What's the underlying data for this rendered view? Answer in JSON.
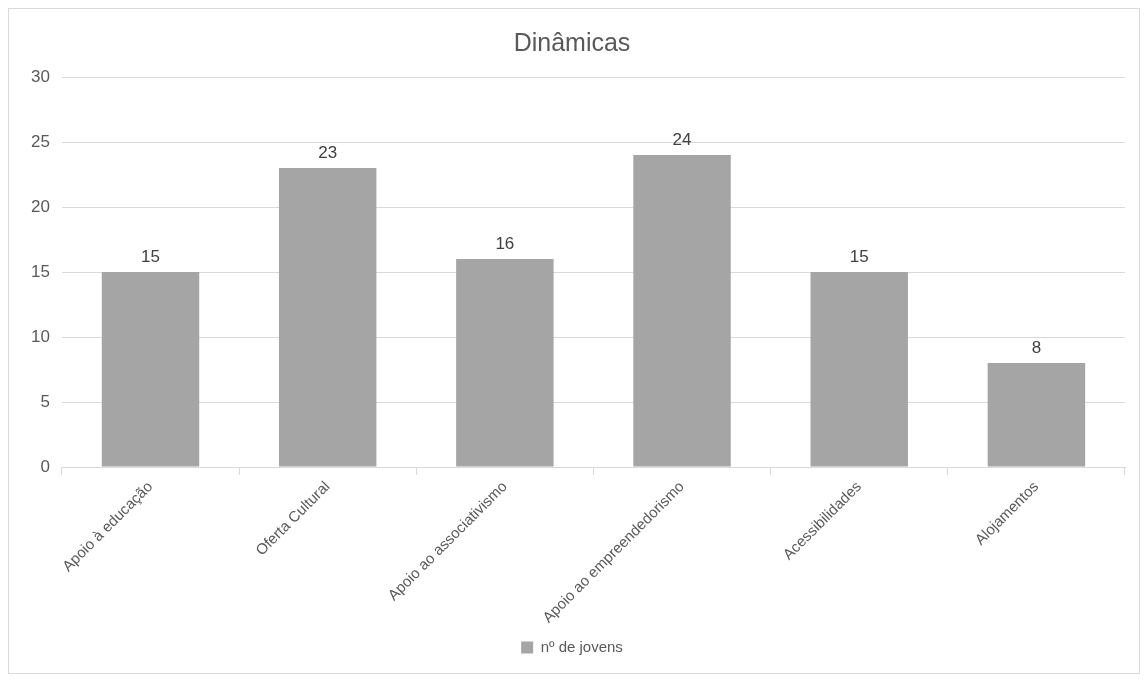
{
  "chart_data": {
    "type": "bar",
    "title": "Dinâmicas",
    "categories": [
      "Apoio à educação",
      "Oferta Cultural",
      "Apoio ao associativismo",
      "Apoio ao empreendedorismo",
      "Acessibilidades",
      "Alojamentos"
    ],
    "series": [
      {
        "name": "nº de jovens",
        "color": "#a5a5a5",
        "values": [
          15,
          23,
          16,
          24,
          15,
          8
        ]
      }
    ],
    "ylim": [
      0,
      30
    ],
    "yticks": [
      0,
      5,
      10,
      15,
      20,
      25,
      30
    ],
    "grid": "y",
    "legend": "bottom",
    "data_labels": true
  }
}
